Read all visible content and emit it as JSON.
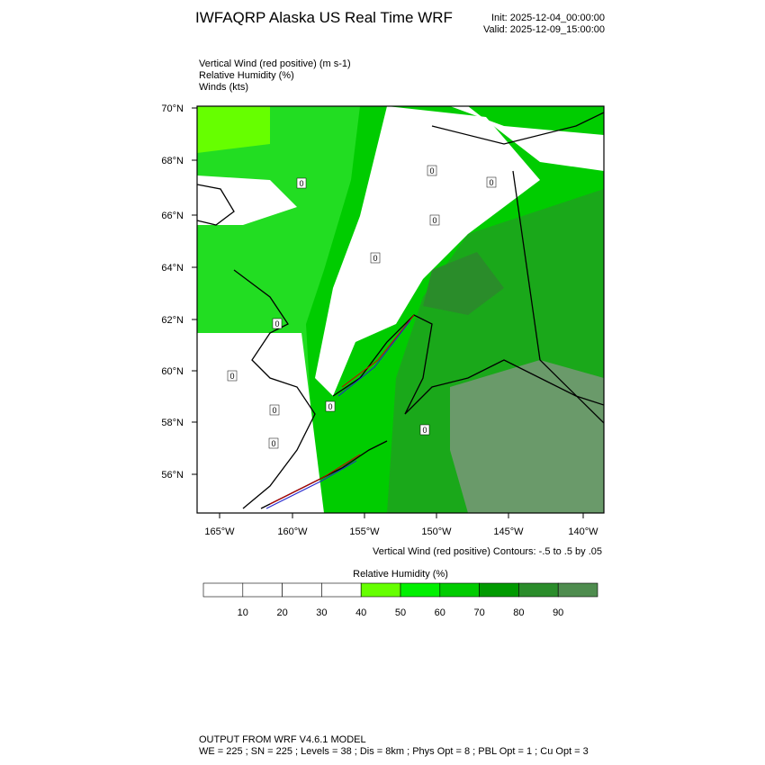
{
  "header": {
    "title": "IWFAQRP Alaska US Real Time WRF",
    "init": "Init: 2025-12-04_00:00:00",
    "valid": "Valid: 2025-12-09_15:00:00"
  },
  "fields": [
    "Vertical Wind (red positive)   (m s-1)",
    "Relative Humidity   (%)",
    "Winds   (kts)"
  ],
  "map": {
    "lat_labels": [
      "70°N",
      "68°N",
      "66°N",
      "64°N",
      "62°N",
      "60°N",
      "58°N",
      "56°N"
    ],
    "lon_labels": [
      "165°W",
      "160°W",
      "155°W",
      "150°W",
      "145°W",
      "140°W"
    ],
    "contour_label": "0",
    "contour_note": "Vertical Wind (red positive) Contours: -.5 to .5 by .05"
  },
  "colorbar": {
    "title": "Relative Humidity  (%)",
    "labels": [
      "10",
      "20",
      "30",
      "40",
      "50",
      "60",
      "70",
      "80",
      "90"
    ],
    "colors": [
      "#ffffff",
      "#ffffff",
      "#ffffff",
      "#ffffff",
      "#66ff00",
      "#00f000",
      "#00cc00",
      "#009a00",
      "#2a8c2a",
      "#4e8c4e"
    ]
  },
  "footer": {
    "line1": "OUTPUT FROM WRF V4.6.1 MODEL",
    "line2": "WE = 225 ; SN = 225 ; Levels = 38 ; Dis = 8km ; Phys Opt = 8 ; PBL Opt = 1 ; Cu Opt = 3"
  }
}
